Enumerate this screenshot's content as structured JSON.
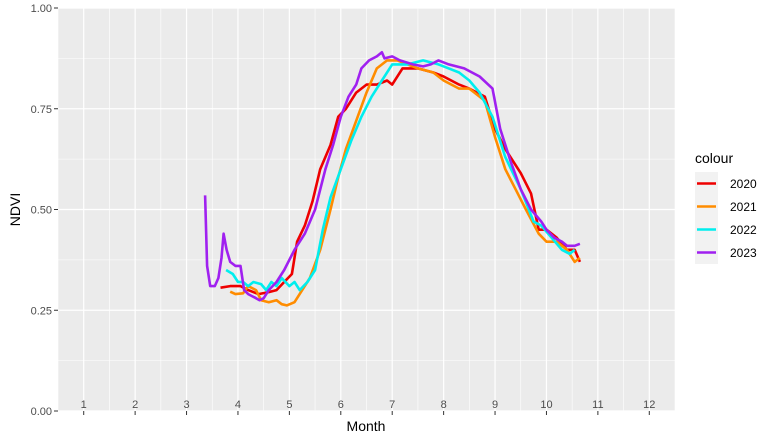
{
  "chart_data": {
    "type": "line",
    "xlabel": "Month",
    "ylabel": "NDVI",
    "ylim": [
      0,
      1
    ],
    "xlim": [
      0.5,
      12.5
    ],
    "grid": true,
    "legend_title": "colour",
    "legend_position": "right",
    "x_ticks": [
      "1",
      "2",
      "3",
      "4",
      "5",
      "6",
      "7",
      "8",
      "9",
      "10",
      "11",
      "12"
    ],
    "y_ticks": [
      "0.00",
      "0.25",
      "0.50",
      "0.75",
      "1.00"
    ],
    "y_tick_values": [
      0,
      0.25,
      0.5,
      0.75,
      1
    ],
    "series": [
      {
        "name": "2020",
        "color": "#ee0000",
        "points": [
          [
            3.66,
            0.306
          ],
          [
            3.85,
            0.31
          ],
          [
            4.05,
            0.31
          ],
          [
            4.2,
            0.3
          ],
          [
            4.4,
            0.29
          ],
          [
            4.6,
            0.295
          ],
          [
            4.75,
            0.3
          ],
          [
            4.9,
            0.32
          ],
          [
            5.05,
            0.34
          ],
          [
            5.15,
            0.42
          ],
          [
            5.3,
            0.46
          ],
          [
            5.45,
            0.52
          ],
          [
            5.6,
            0.6
          ],
          [
            5.8,
            0.66
          ],
          [
            5.95,
            0.73
          ],
          [
            6.1,
            0.75
          ],
          [
            6.3,
            0.79
          ],
          [
            6.5,
            0.81
          ],
          [
            6.7,
            0.81
          ],
          [
            6.9,
            0.82
          ],
          [
            7.0,
            0.81
          ],
          [
            7.2,
            0.85
          ],
          [
            7.5,
            0.85
          ],
          [
            7.8,
            0.84
          ],
          [
            8.0,
            0.83
          ],
          [
            8.3,
            0.81
          ],
          [
            8.5,
            0.8
          ],
          [
            8.8,
            0.78
          ],
          [
            9.0,
            0.7
          ],
          [
            9.2,
            0.65
          ],
          [
            9.5,
            0.59
          ],
          [
            9.7,
            0.54
          ],
          [
            9.85,
            0.45
          ],
          [
            10.0,
            0.45
          ],
          [
            10.2,
            0.43
          ],
          [
            10.4,
            0.4
          ],
          [
            10.55,
            0.4
          ],
          [
            10.65,
            0.37
          ]
        ]
      },
      {
        "name": "2021",
        "color": "#ff8c00",
        "points": [
          [
            3.85,
            0.296
          ],
          [
            3.95,
            0.29
          ],
          [
            4.1,
            0.292
          ],
          [
            4.2,
            0.31
          ],
          [
            4.35,
            0.3
          ],
          [
            4.45,
            0.275
          ],
          [
            4.6,
            0.27
          ],
          [
            4.75,
            0.275
          ],
          [
            4.85,
            0.265
          ],
          [
            4.95,
            0.262
          ],
          [
            5.1,
            0.27
          ],
          [
            5.25,
            0.3
          ],
          [
            5.4,
            0.33
          ],
          [
            5.6,
            0.4
          ],
          [
            5.8,
            0.5
          ],
          [
            5.95,
            0.58
          ],
          [
            6.1,
            0.65
          ],
          [
            6.3,
            0.72
          ],
          [
            6.5,
            0.79
          ],
          [
            6.7,
            0.85
          ],
          [
            6.9,
            0.87
          ],
          [
            7.1,
            0.87
          ],
          [
            7.3,
            0.86
          ],
          [
            7.5,
            0.85
          ],
          [
            7.8,
            0.84
          ],
          [
            8.0,
            0.82
          ],
          [
            8.3,
            0.8
          ],
          [
            8.5,
            0.8
          ],
          [
            8.8,
            0.77
          ],
          [
            9.0,
            0.68
          ],
          [
            9.2,
            0.6
          ],
          [
            9.4,
            0.55
          ],
          [
            9.6,
            0.5
          ],
          [
            9.85,
            0.44
          ],
          [
            10.0,
            0.42
          ],
          [
            10.2,
            0.42
          ],
          [
            10.4,
            0.4
          ],
          [
            10.55,
            0.37
          ],
          [
            10.65,
            0.38
          ]
        ]
      },
      {
        "name": "2022",
        "color": "#00eeee",
        "points": [
          [
            3.77,
            0.35
          ],
          [
            3.9,
            0.34
          ],
          [
            4.0,
            0.32
          ],
          [
            4.1,
            0.32
          ],
          [
            4.2,
            0.31
          ],
          [
            4.3,
            0.32
          ],
          [
            4.45,
            0.315
          ],
          [
            4.55,
            0.3
          ],
          [
            4.65,
            0.32
          ],
          [
            4.75,
            0.31
          ],
          [
            4.85,
            0.33
          ],
          [
            5.0,
            0.31
          ],
          [
            5.1,
            0.32
          ],
          [
            5.2,
            0.3
          ],
          [
            5.35,
            0.32
          ],
          [
            5.5,
            0.35
          ],
          [
            5.65,
            0.45
          ],
          [
            5.8,
            0.53
          ],
          [
            6.0,
            0.6
          ],
          [
            6.2,
            0.67
          ],
          [
            6.4,
            0.73
          ],
          [
            6.6,
            0.78
          ],
          [
            6.8,
            0.82
          ],
          [
            7.0,
            0.86
          ],
          [
            7.3,
            0.86
          ],
          [
            7.6,
            0.87
          ],
          [
            7.9,
            0.86
          ],
          [
            8.1,
            0.85
          ],
          [
            8.3,
            0.84
          ],
          [
            8.5,
            0.82
          ],
          [
            8.7,
            0.79
          ],
          [
            8.95,
            0.73
          ],
          [
            9.2,
            0.63
          ],
          [
            9.5,
            0.55
          ],
          [
            9.75,
            0.47
          ],
          [
            9.9,
            0.46
          ],
          [
            10.1,
            0.43
          ],
          [
            10.3,
            0.4
          ],
          [
            10.45,
            0.39
          ],
          [
            10.55,
            0.4
          ]
        ]
      },
      {
        "name": "2023",
        "color": "#a020f0",
        "points": [
          [
            3.36,
            0.535
          ],
          [
            3.4,
            0.36
          ],
          [
            3.46,
            0.31
          ],
          [
            3.55,
            0.31
          ],
          [
            3.62,
            0.33
          ],
          [
            3.68,
            0.38
          ],
          [
            3.72,
            0.44
          ],
          [
            3.78,
            0.4
          ],
          [
            3.85,
            0.37
          ],
          [
            3.95,
            0.36
          ],
          [
            4.05,
            0.36
          ],
          [
            4.12,
            0.3
          ],
          [
            4.2,
            0.29
          ],
          [
            4.35,
            0.28
          ],
          [
            4.42,
            0.275
          ],
          [
            4.5,
            0.28
          ],
          [
            4.6,
            0.3
          ],
          [
            4.75,
            0.32
          ],
          [
            4.9,
            0.35
          ],
          [
            5.1,
            0.4
          ],
          [
            5.3,
            0.44
          ],
          [
            5.5,
            0.5
          ],
          [
            5.7,
            0.6
          ],
          [
            5.85,
            0.66
          ],
          [
            6.0,
            0.73
          ],
          [
            6.15,
            0.78
          ],
          [
            6.3,
            0.81
          ],
          [
            6.4,
            0.85
          ],
          [
            6.55,
            0.87
          ],
          [
            6.7,
            0.88
          ],
          [
            6.8,
            0.89
          ],
          [
            6.85,
            0.875
          ],
          [
            7.0,
            0.88
          ],
          [
            7.15,
            0.87
          ],
          [
            7.4,
            0.86
          ],
          [
            7.6,
            0.855
          ],
          [
            7.75,
            0.86
          ],
          [
            7.9,
            0.87
          ],
          [
            8.1,
            0.86
          ],
          [
            8.4,
            0.85
          ],
          [
            8.7,
            0.83
          ],
          [
            8.95,
            0.8
          ],
          [
            9.1,
            0.7
          ],
          [
            9.3,
            0.62
          ],
          [
            9.5,
            0.55
          ],
          [
            9.7,
            0.5
          ],
          [
            9.9,
            0.47
          ],
          [
            10.0,
            0.45
          ],
          [
            10.15,
            0.43
          ],
          [
            10.3,
            0.42
          ],
          [
            10.4,
            0.41
          ],
          [
            10.55,
            0.41
          ],
          [
            10.65,
            0.415
          ]
        ]
      }
    ]
  }
}
